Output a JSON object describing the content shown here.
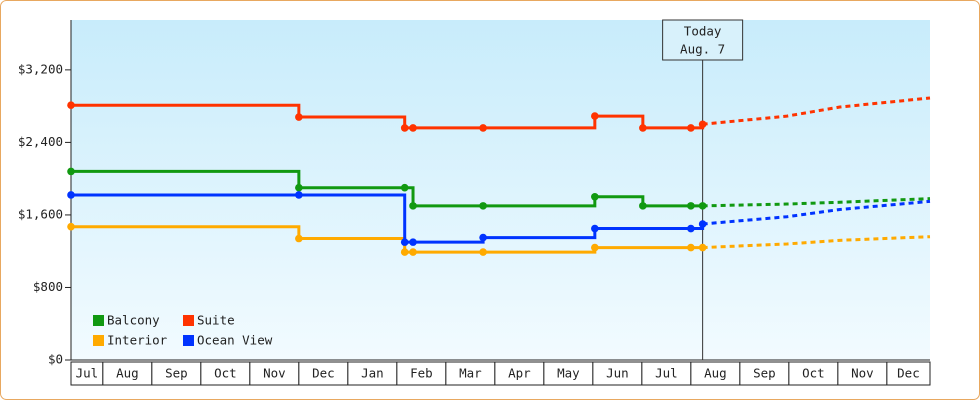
{
  "chart_data": {
    "type": "step",
    "ylim": [
      0,
      3750
    ],
    "yticks": [
      {
        "value": 0,
        "label": "$0"
      },
      {
        "value": 800,
        "label": "$800"
      },
      {
        "value": 1600,
        "label": "$1,600"
      },
      {
        "value": 2400,
        "label": "$2,400"
      },
      {
        "value": 3200,
        "label": "$3,200"
      }
    ],
    "xlim": [
      0.35,
      17.88
    ],
    "months": [
      "Jul",
      "Aug",
      "Sep",
      "Oct",
      "Nov",
      "Dec",
      "Jan",
      "Feb",
      "Mar",
      "Apr",
      "May",
      "Jun",
      "Jul",
      "Aug",
      "Sep",
      "Oct",
      "Nov",
      "Dec"
    ],
    "today": {
      "x": 13.24,
      "label": [
        "Today",
        "Aug. 7"
      ]
    },
    "legend": "lower left",
    "series": [
      {
        "name": "Balcony",
        "color": "#119911",
        "x": [
          0.35,
          5.0,
          7.16,
          7.33,
          8.76,
          11.04,
          12.02,
          13.0,
          13.24
        ],
        "values": [
          2080,
          1900,
          1900,
          1700,
          1700,
          1800,
          1700,
          1700,
          1700
        ],
        "forecast_x": [
          13.24,
          14.96,
          16.04,
          17.88
        ],
        "forecast_values": [
          1700,
          1720,
          1740,
          1780
        ]
      },
      {
        "name": "Suite",
        "color": "#ff3300",
        "x": [
          0.35,
          5.0,
          7.16,
          7.33,
          8.76,
          11.04,
          12.02,
          13.0,
          13.24
        ],
        "values": [
          2810,
          2680,
          2560,
          2560,
          2560,
          2690,
          2560,
          2560,
          2600
        ],
        "forecast_x": [
          13.24,
          14.96,
          16.04,
          17.88
        ],
        "forecast_values": [
          2600,
          2690,
          2790,
          2890
        ]
      },
      {
        "name": "Interior",
        "color": "#ffaa00",
        "x": [
          0.35,
          5.0,
          7.16,
          7.33,
          8.76,
          11.04,
          13.0,
          13.24
        ],
        "values": [
          1470,
          1340,
          1190,
          1190,
          1190,
          1240,
          1240,
          1240
        ],
        "forecast_x": [
          13.24,
          14.96,
          16.04,
          17.88
        ],
        "forecast_values": [
          1240,
          1280,
          1320,
          1360
        ]
      },
      {
        "name": "Ocean View",
        "color": "#0033ff",
        "x": [
          0.35,
          5.0,
          7.16,
          7.33,
          8.76,
          11.04,
          13.0,
          13.24
        ],
        "values": [
          1820,
          1820,
          1300,
          1300,
          1350,
          1450,
          1450,
          1500
        ],
        "forecast_x": [
          13.24,
          14.96,
          16.04,
          17.88
        ],
        "forecast_values": [
          1500,
          1580,
          1660,
          1750
        ]
      }
    ]
  }
}
